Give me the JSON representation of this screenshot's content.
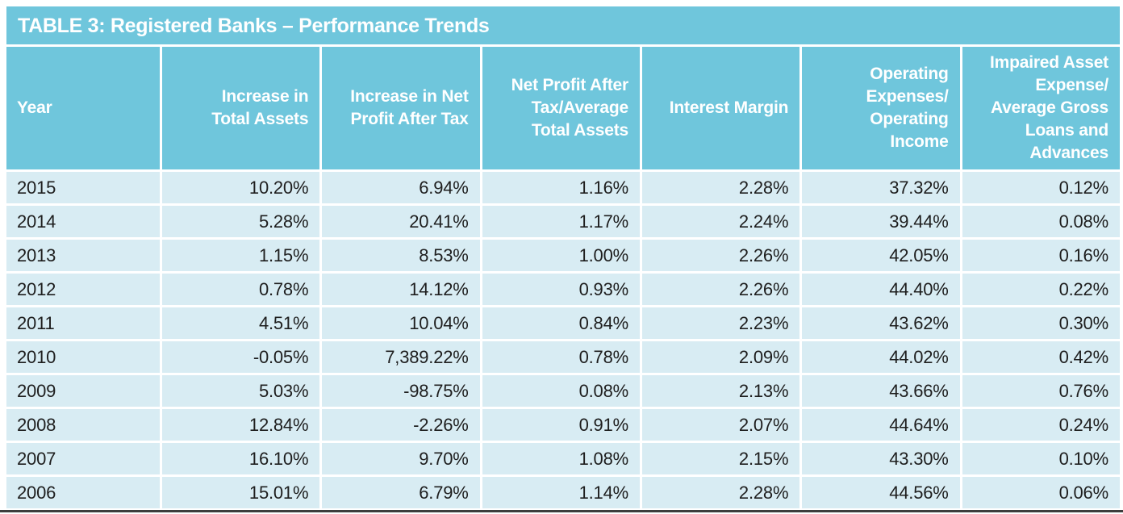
{
  "colors": {
    "header_bg": "#6fc6dc",
    "header_text": "#ffffff",
    "row_bg": "#d8ecf3",
    "body_text": "#1e1e1e",
    "bottom_rule": "#3d3d3d"
  },
  "chart_data": {
    "type": "table",
    "title": "TABLE 3: Registered Banks – Performance Trends",
    "columns": [
      {
        "id": "year",
        "label": "Year",
        "align": "left"
      },
      {
        "id": "increase-in-total-assets",
        "label": "Increase in\nTotal Assets",
        "align": "right"
      },
      {
        "id": "increase-in-net-profit-after-tax",
        "label": "Increase in Net\nProfit After Tax",
        "align": "right"
      },
      {
        "id": "net-profit-after-tax-average-total-assets",
        "label": "Net Profit After\nTax/Average\nTotal Assets",
        "align": "right"
      },
      {
        "id": "interest-margin",
        "label": "Interest Margin",
        "align": "right"
      },
      {
        "id": "operating-expenses-operating-income",
        "label": "Operating\nExpenses/\nOperating\nIncome",
        "align": "right"
      },
      {
        "id": "impaired-asset-expense-average-gross-loans-and-advances",
        "label": "Impaired Asset\nExpense/\nAverage Gross\nLoans and\nAdvances",
        "align": "right"
      }
    ],
    "rows": [
      [
        "2015",
        "10.20%",
        "6.94%",
        "1.16%",
        "2.28%",
        "37.32%",
        "0.12%"
      ],
      [
        "2014",
        "5.28%",
        "20.41%",
        "1.17%",
        "2.24%",
        "39.44%",
        "0.08%"
      ],
      [
        "2013",
        "1.15%",
        "8.53%",
        "1.00%",
        "2.26%",
        "42.05%",
        "0.16%"
      ],
      [
        "2012",
        "0.78%",
        "14.12%",
        "0.93%",
        "2.26%",
        "44.40%",
        "0.22%"
      ],
      [
        "2011",
        "4.51%",
        "10.04%",
        "0.84%",
        "2.23%",
        "43.62%",
        "0.30%"
      ],
      [
        "2010",
        "-0.05%",
        "7,389.22%",
        "0.78%",
        "2.09%",
        "44.02%",
        "0.42%"
      ],
      [
        "2009",
        "5.03%",
        "-98.75%",
        "0.08%",
        "2.13%",
        "43.66%",
        "0.76%"
      ],
      [
        "2008",
        "12.84%",
        "-2.26%",
        "0.91%",
        "2.07%",
        "44.64%",
        "0.24%"
      ],
      [
        "2007",
        "16.10%",
        "9.70%",
        "1.08%",
        "2.15%",
        "43.30%",
        "0.10%"
      ],
      [
        "2006",
        "15.01%",
        "6.79%",
        "1.14%",
        "2.28%",
        "44.56%",
        "0.06%"
      ]
    ]
  }
}
